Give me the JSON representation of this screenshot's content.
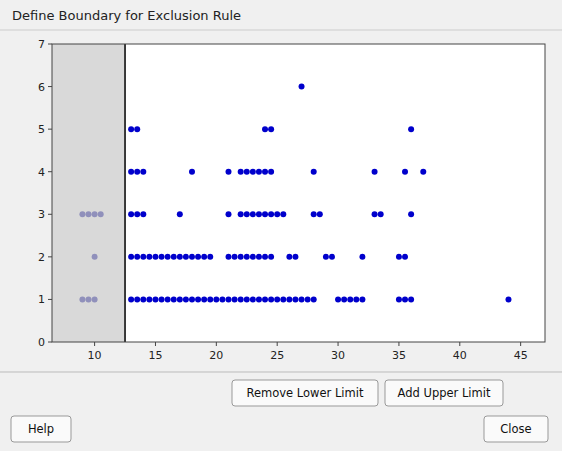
{
  "chart_data": {
    "type": "scatter",
    "title": "Define Boundary for Exclusion Rule",
    "annotations": [
      "Remove Lower Limit",
      "Add Upper Limit",
      "Help",
      "Close"
    ],
    "xlim": [
      6.5,
      47
    ],
    "ylim": [
      0,
      7
    ],
    "xticks": [
      10,
      15,
      20,
      25,
      30,
      35,
      40,
      45
    ],
    "yticks": [
      0,
      1,
      2,
      3,
      4,
      5,
      6,
      7
    ],
    "lower_limit": 12.5,
    "series": [
      {
        "color": "#0000cc",
        "x": [
          13,
          13.5,
          14,
          14.5,
          15,
          15.5,
          16,
          16.5,
          17,
          17.5,
          18,
          18.5,
          19,
          19.5,
          20,
          20.5,
          21,
          21.5,
          22,
          22.5,
          23,
          23.5,
          24,
          24.5,
          25,
          25.5,
          26,
          26.5,
          27,
          27.5,
          28,
          30,
          30.5,
          31,
          31.5,
          32,
          35,
          35.5,
          36,
          44,
          13,
          13.5,
          14,
          14.5,
          15,
          15.5,
          16,
          16.5,
          17,
          17.5,
          18,
          18.5,
          19,
          19.5,
          21,
          21.5,
          22,
          22.5,
          23,
          23.5,
          24,
          24.5,
          26,
          26.5,
          29,
          29.5,
          32,
          35,
          35.5,
          13,
          13.5,
          14,
          17,
          21,
          22,
          22.5,
          23,
          23.5,
          24,
          24.5,
          25,
          25.5,
          28,
          28.5,
          33,
          33.5,
          36,
          13,
          13.5,
          14,
          18,
          21,
          22,
          22.5,
          23,
          23.5,
          24,
          24.5,
          28,
          33,
          35.5,
          37,
          13,
          13.5,
          24,
          24.5,
          36,
          27
        ],
        "values": [
          1,
          1,
          1,
          1,
          1,
          1,
          1,
          1,
          1,
          1,
          1,
          1,
          1,
          1,
          1,
          1,
          1,
          1,
          1,
          1,
          1,
          1,
          1,
          1,
          1,
          1,
          1,
          1,
          1,
          1,
          1,
          1,
          1,
          1,
          1,
          1,
          1,
          1,
          1,
          1,
          2,
          2,
          2,
          2,
          2,
          2,
          2,
          2,
          2,
          2,
          2,
          2,
          2,
          2,
          2,
          2,
          2,
          2,
          2,
          2,
          2,
          2,
          2,
          2,
          2,
          2,
          2,
          2,
          2,
          3,
          3,
          3,
          3,
          3,
          3,
          3,
          3,
          3,
          3,
          3,
          3,
          3,
          3,
          3,
          3,
          3,
          3,
          4,
          4,
          4,
          4,
          4,
          4,
          4,
          4,
          4,
          4,
          4,
          4,
          4,
          4,
          4,
          5,
          5,
          5,
          5,
          5,
          6
        ]
      },
      {
        "color": "#9090bb",
        "x": [
          9,
          9.5,
          10,
          10,
          9,
          9.5,
          10,
          10.5
        ],
        "values": [
          1,
          1,
          1,
          2,
          3,
          3,
          3,
          3
        ]
      }
    ]
  }
}
